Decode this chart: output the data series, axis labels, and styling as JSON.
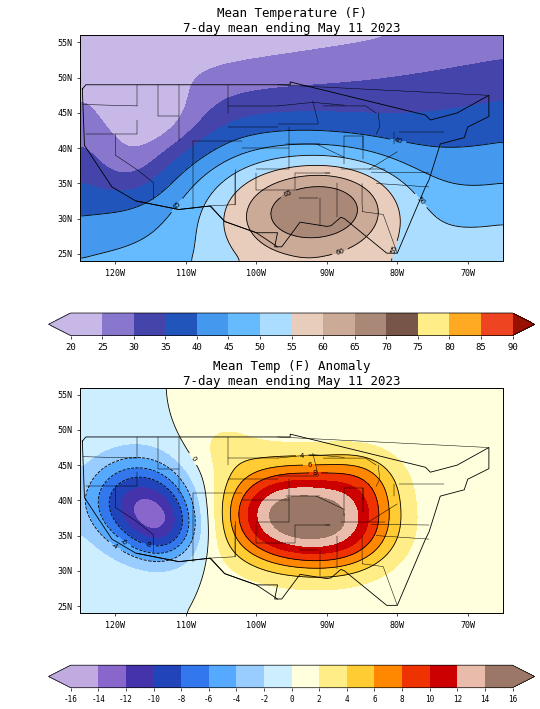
{
  "title1": "Mean Temperature (F)",
  "subtitle1": "7-day mean ending May 11 2023",
  "title2": "Mean Temp (F) Anomaly",
  "subtitle2": "7-day mean ending May 11 2023",
  "temp_cbar_ticks": [
    20,
    25,
    30,
    35,
    40,
    45,
    50,
    55,
    60,
    65,
    70,
    75,
    80,
    85,
    90
  ],
  "temp_cmap_colors": [
    "#c8b8e8",
    "#8877cc",
    "#4444aa",
    "#2255bb",
    "#4499ee",
    "#66bbff",
    "#aaddff",
    "#ddeeff",
    "#e8ccbc",
    "#ccaa98",
    "#aa8878",
    "#775548",
    "#ffee88",
    "#ffaa22",
    "#ee4422",
    "#991100"
  ],
  "anom_cbar_ticks": [
    -16,
    -14,
    -12,
    -10,
    -8,
    -6,
    -4,
    -2,
    0,
    2,
    4,
    6,
    8,
    10,
    12,
    14,
    16
  ],
  "anom_cmap_colors": [
    "#c0aae0",
    "#8866cc",
    "#4433aa",
    "#2244bb",
    "#3377ee",
    "#55aaff",
    "#99ccff",
    "#cceeff",
    "#ffffdd",
    "#ffee88",
    "#ffcc33",
    "#ff8800",
    "#ee3300",
    "#cc0000",
    "#e8bbaa",
    "#c89988",
    "#9a7766"
  ],
  "xlim": [
    -125,
    -65
  ],
  "ylim": [
    24.0,
    56.0
  ],
  "xticks": [
    -120,
    -110,
    -100,
    -90,
    -80,
    -70
  ],
  "xtick_labels": [
    "120W",
    "110W",
    "100W",
    "90W",
    "80W",
    "70W"
  ],
  "yticks": [
    25,
    30,
    35,
    40,
    45,
    50,
    55
  ],
  "ytick_labels": [
    "25N",
    "30N",
    "35N",
    "40N",
    "45N",
    "50N",
    "55N"
  ],
  "bg_color": "#ffffff",
  "font_family": "monospace"
}
